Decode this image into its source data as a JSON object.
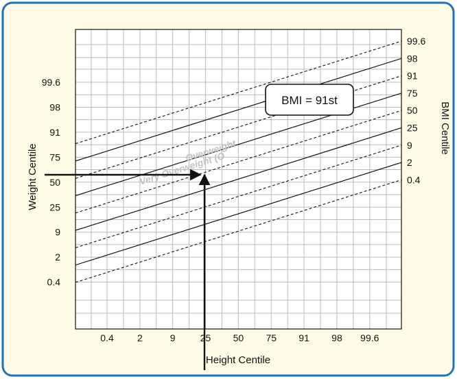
{
  "colors": {
    "frame_border": "#1b75bc",
    "frame_fill": "#fffbe6",
    "plot_fill": "#ffffff",
    "grid": "#b9b9b9",
    "line": "#111111",
    "zone_label": "#c2c2c2"
  },
  "chart_data": {
    "type": "line",
    "title": "",
    "xlabel": "Height Centile",
    "ylabel_left": "Weight Centile",
    "ylabel_right": "BMI Centile",
    "x_ticks": [
      "0.4",
      "2",
      "9",
      "25",
      "50",
      "75",
      "91",
      "98",
      "99.6"
    ],
    "y_left_ticks": [
      "99.6",
      "98",
      "91",
      "75",
      "50",
      "25",
      "9",
      "2",
      "0.4"
    ],
    "bmi_centiles": [
      {
        "label": "99.6",
        "style": "dashed"
      },
      {
        "label": "98",
        "style": "solid"
      },
      {
        "label": "91",
        "style": "dashed"
      },
      {
        "label": "75",
        "style": "solid"
      },
      {
        "label": "50",
        "style": "dashed"
      },
      {
        "label": "25",
        "style": "solid"
      },
      {
        "label": "9",
        "style": "dashed"
      },
      {
        "label": "2",
        "style": "solid"
      },
      {
        "label": "0.4",
        "style": "dashed"
      }
    ],
    "zone_labels": [
      "Very Overweight (O",
      "Overweight"
    ],
    "reading": {
      "height_centile": "25",
      "weight_centile": "75"
    },
    "annotation": "BMI = 91st",
    "grid": true,
    "legend": "none"
  }
}
